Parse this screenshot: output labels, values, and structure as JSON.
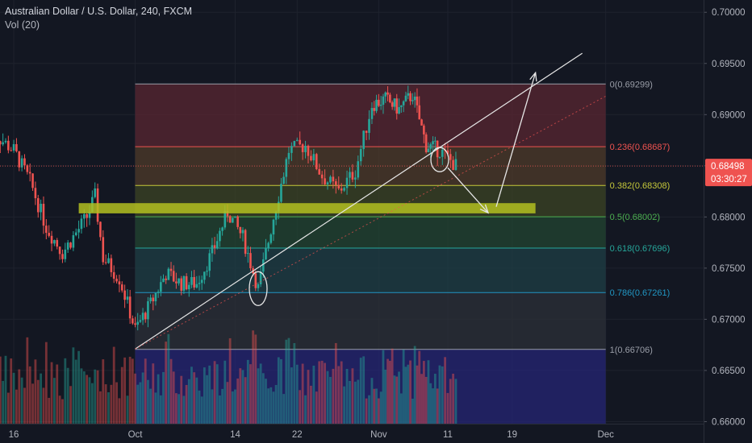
{
  "header": {
    "symbol_line": "Australian Dollar / U.S. Dollar, 240, FXCM",
    "volume_label": "Vol (20)"
  },
  "chart_data": {
    "type": "candlestick",
    "title": "Australian Dollar / U.S. Dollar, 240, FXCM",
    "indicator": "Vol (20)",
    "xlabel": "",
    "ylabel": "",
    "x_tick_labels": [
      "16",
      "Oct",
      "14",
      "22",
      "Nov",
      "11",
      "19",
      "Dec"
    ],
    "y_tick_labels": [
      "0.70000",
      "0.69500",
      "0.69000",
      "0.68500",
      "0.68000",
      "0.67500",
      "0.67000",
      "0.66500",
      "0.66000"
    ],
    "ylim": [
      0.6598,
      0.7012
    ],
    "grid": true,
    "up_color": "#26a69a",
    "down_color": "#ef5350",
    "current_price": {
      "label": "0.68498",
      "countdown": "03:30:27",
      "color": "#ef5350"
    },
    "price_path": [
      {
        "date": "Sep 13",
        "price": 0.6885
      },
      {
        "date": "Sep 16",
        "price": 0.6865
      },
      {
        "date": "Sep 18",
        "price": 0.6835
      },
      {
        "date": "Sep 20",
        "price": 0.679
      },
      {
        "date": "Sep 22",
        "price": 0.6765
      },
      {
        "date": "Sep 25",
        "price": 0.68
      },
      {
        "date": "Sep 26",
        "price": 0.682
      },
      {
        "date": "Sep 27",
        "price": 0.676
      },
      {
        "date": "Sep 29",
        "price": 0.674
      },
      {
        "date": "Oct 1",
        "price": 0.669
      },
      {
        "date": "Oct 3",
        "price": 0.6715
      },
      {
        "date": "Oct 5",
        "price": 0.6745
      },
      {
        "date": "Oct 7",
        "price": 0.6735
      },
      {
        "date": "Oct 9",
        "price": 0.6735
      },
      {
        "date": "Oct 11",
        "price": 0.6765
      },
      {
        "date": "Oct 13",
        "price": 0.6805
      },
      {
        "date": "Oct 15",
        "price": 0.678
      },
      {
        "date": "Oct 17",
        "price": 0.673
      },
      {
        "date": "Oct 19",
        "price": 0.68
      },
      {
        "date": "Oct 21",
        "price": 0.6865
      },
      {
        "date": "Oct 23",
        "price": 0.687
      },
      {
        "date": "Oct 25",
        "price": 0.684
      },
      {
        "date": "Oct 27",
        "price": 0.6825
      },
      {
        "date": "Oct 29",
        "price": 0.6845
      },
      {
        "date": "Oct 31",
        "price": 0.691
      },
      {
        "date": "Nov 2",
        "price": 0.6915
      },
      {
        "date": "Nov 4",
        "price": 0.6905
      },
      {
        "date": "Nov 6",
        "price": 0.692
      },
      {
        "date": "Nov 8",
        "price": 0.687
      },
      {
        "date": "Nov 10",
        "price": 0.6865
      },
      {
        "date": "Nov 12",
        "price": 0.685
      }
    ],
    "fibonacci": {
      "start_date": "Oct 1",
      "end_date": "Dec 1",
      "levels": [
        {
          "label": "0(0.69299)",
          "value": 0.69299,
          "color": "#9a9ea8"
        },
        {
          "label": "0.236(0.68687)",
          "value": 0.68687,
          "color": "#ef5350"
        },
        {
          "label": "0.382(0.68308)",
          "value": 0.68308,
          "color": "#c5c83a"
        },
        {
          "label": "0.5(0.68002)",
          "value": 0.68002,
          "color": "#4caf50"
        },
        {
          "label": "0.618(0.67696)",
          "value": 0.67696,
          "color": "#26a69a"
        },
        {
          "label": "0.786(0.67261)",
          "value": 0.67261,
          "color": "#2196c3"
        },
        {
          "label": "1(0.66706)",
          "value": 0.66706,
          "color": "#9a9ea8"
        }
      ]
    },
    "drawings": {
      "support_zone": {
        "date_start": "Sep 24",
        "date_end": "Nov 22",
        "y_low": 0.68035,
        "y_high": 0.68135,
        "color": "#b3c020"
      },
      "trendline": {
        "from": {
          "date": "Oct 1",
          "price": 0.6671
        },
        "to": {
          "date": "Nov 28",
          "price": 0.696
        }
      },
      "projection_down": {
        "from": {
          "date": "Nov 11",
          "price": 0.6848
        },
        "to": {
          "date": "Nov 16",
          "price": 0.6804
        }
      },
      "projection_up": {
        "from": {
          "date": "Nov 17",
          "price": 0.681
        },
        "to": {
          "date": "Nov 22",
          "price": 0.6941
        }
      },
      "ellipses": [
        {
          "date": "Oct 17",
          "price": 0.673
        },
        {
          "date": "Nov 10",
          "price": 0.6856
        }
      ]
    },
    "volume_scale_max": 10000
  }
}
